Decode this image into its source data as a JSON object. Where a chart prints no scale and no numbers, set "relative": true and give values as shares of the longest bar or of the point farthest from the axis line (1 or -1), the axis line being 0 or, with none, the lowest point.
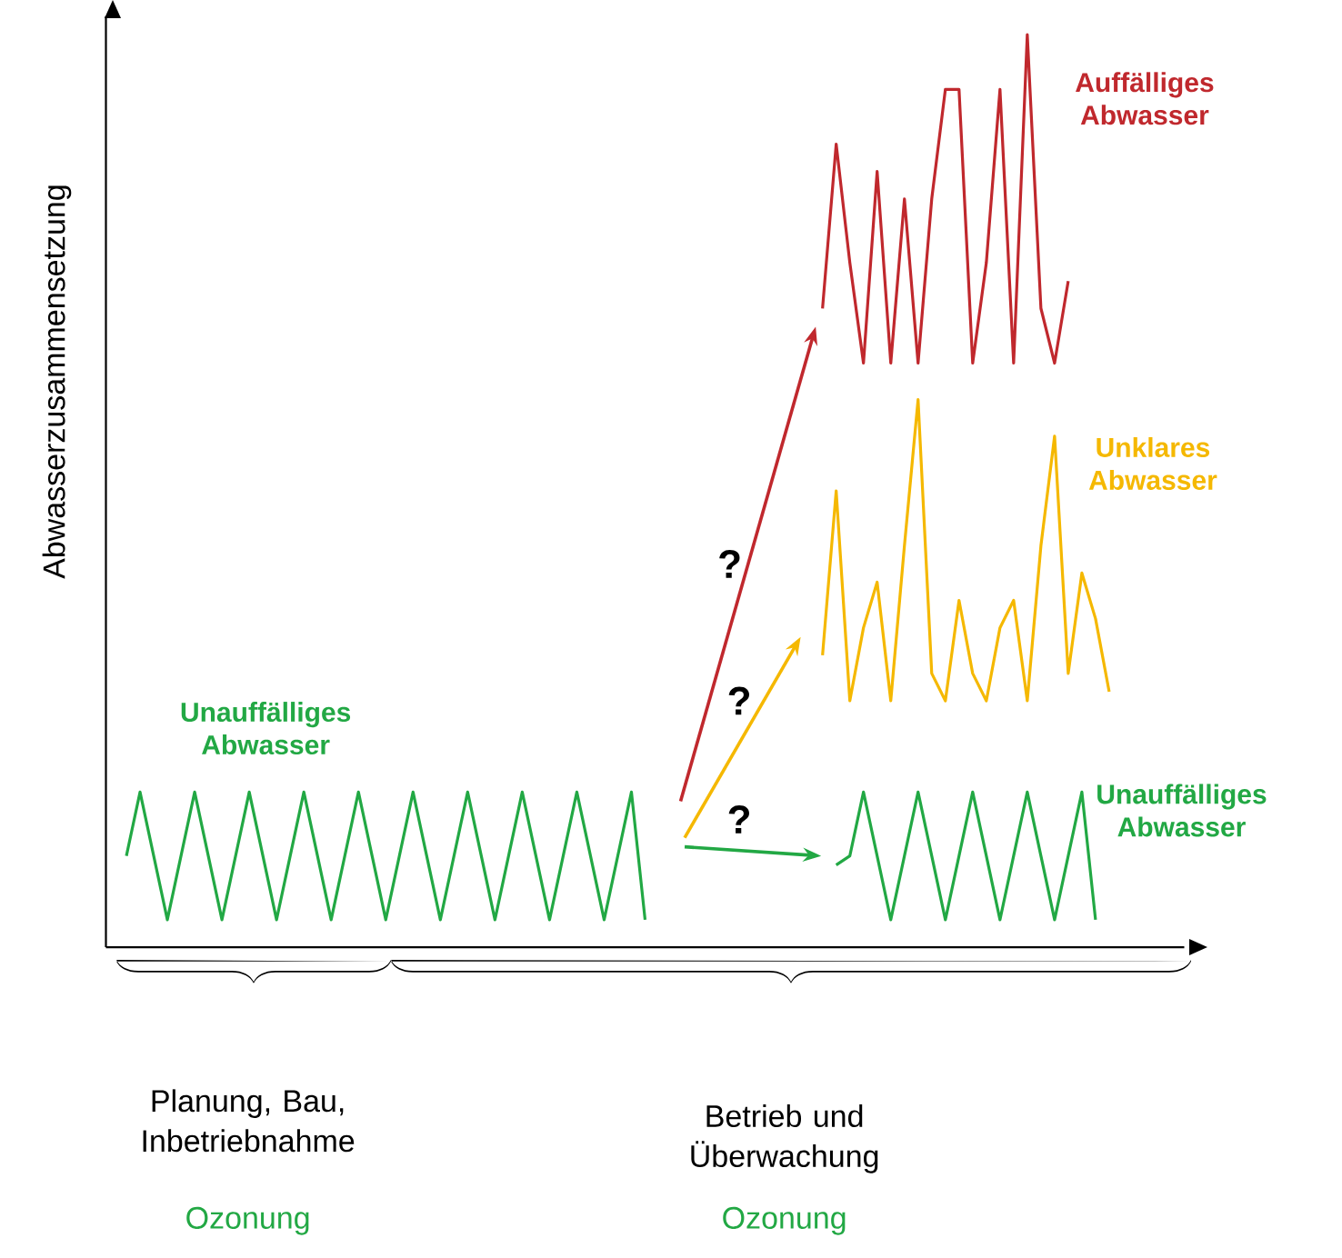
{
  "chart_data": {
    "type": "line",
    "relative": true,
    "ylabel": "Abwasserzusammensetzung",
    "categories": [
      null,
      null,
      null,
      null,
      null,
      null,
      null,
      null,
      null,
      null,
      null,
      null,
      null,
      null,
      null,
      null,
      null,
      null,
      null,
      null,
      null,
      null,
      null,
      null,
      null,
      null,
      null,
      null,
      null,
      null,
      null,
      null,
      null,
      null,
      null,
      null,
      null,
      null,
      null,
      null,
      null,
      null,
      null,
      null,
      null,
      null,
      null,
      null,
      null,
      null,
      null,
      null,
      null,
      null,
      null,
      null,
      null,
      null,
      null,
      null,
      null,
      null,
      null,
      null,
      null,
      null,
      null,
      null,
      null,
      null,
      null,
      null,
      null,
      null,
      null,
      null,
      null,
      null,
      null
    ],
    "series": [
      {
        "name": "Unauffälliges Abwasser",
        "color": "#22a844",
        "values": [
          null,
          0.1,
          0.17,
          0.1,
          0.03,
          0.1,
          0.17,
          0.1,
          0.03,
          0.1,
          0.17,
          0.1,
          0.03,
          0.1,
          0.17,
          0.1,
          0.03,
          0.1,
          0.17,
          0.1,
          0.03,
          0.1,
          0.17,
          0.1,
          0.03,
          0.1,
          0.17,
          0.1,
          0.03,
          0.1,
          0.17,
          0.1,
          0.03,
          0.1,
          0.17,
          0.1,
          0.03,
          0.1,
          0.17,
          0.03,
          null,
          null,
          null,
          null,
          null,
          null,
          null,
          null,
          null,
          null,
          null,
          null,
          null,
          null,
          null,
          null,
          null,
          null,
          null,
          null,
          null,
          null,
          null,
          null,
          null,
          null,
          null,
          null,
          null,
          null,
          null,
          null,
          null,
          null,
          null,
          null,
          null,
          null,
          null
        ]
      },
      {
        "name": "Auffälliges Abwasser",
        "color": "#c0282d",
        "values": [
          null,
          null,
          null,
          null,
          null,
          null,
          null,
          null,
          null,
          null,
          null,
          null,
          null,
          null,
          null,
          null,
          null,
          null,
          null,
          null,
          null,
          null,
          null,
          null,
          null,
          null,
          null,
          null,
          null,
          null,
          null,
          null,
          null,
          null,
          null,
          null,
          null,
          null,
          null,
          null,
          null,
          null,
          null,
          null,
          null,
          null,
          null,
          null,
          null,
          null,
          null,
          null,
          0.7,
          0.88,
          0.75,
          0.64,
          0.85,
          0.64,
          0.82,
          0.64,
          0.82,
          0.94,
          0.94,
          0.64,
          0.75,
          0.94,
          0.64,
          1.0,
          0.7,
          0.64,
          0.73,
          null,
          null,
          null,
          null,
          null,
          null,
          null,
          null
        ]
      },
      {
        "name": "Unklares Abwasser",
        "color": "#f5b800",
        "values": [
          null,
          null,
          null,
          null,
          null,
          null,
          null,
          null,
          null,
          null,
          null,
          null,
          null,
          null,
          null,
          null,
          null,
          null,
          null,
          null,
          null,
          null,
          null,
          null,
          null,
          null,
          null,
          null,
          null,
          null,
          null,
          null,
          null,
          null,
          null,
          null,
          null,
          null,
          null,
          null,
          null,
          null,
          null,
          null,
          null,
          null,
          null,
          null,
          null,
          null,
          null,
          null,
          0.32,
          0.5,
          0.27,
          0.35,
          0.4,
          0.27,
          0.44,
          0.6,
          0.3,
          0.27,
          0.38,
          0.3,
          0.27,
          0.35,
          0.38,
          0.27,
          0.44,
          0.56,
          0.3,
          0.41,
          0.36,
          0.28,
          null,
          null,
          null,
          null,
          null
        ]
      },
      {
        "name": "Unauffälliges Abwasser",
        "color": "#22a844",
        "values": [
          null,
          null,
          null,
          null,
          null,
          null,
          null,
          null,
          null,
          null,
          null,
          null,
          null,
          null,
          null,
          null,
          null,
          null,
          null,
          null,
          null,
          null,
          null,
          null,
          null,
          null,
          null,
          null,
          null,
          null,
          null,
          null,
          null,
          null,
          null,
          null,
          null,
          null,
          null,
          null,
          null,
          null,
          null,
          null,
          null,
          null,
          null,
          null,
          null,
          null,
          null,
          null,
          null,
          0.09,
          0.1,
          0.17,
          0.1,
          0.03,
          0.1,
          0.17,
          0.1,
          0.03,
          0.1,
          0.17,
          0.1,
          0.03,
          0.1,
          0.17,
          0.1,
          0.03,
          0.1,
          0.17,
          0.03,
          null,
          null,
          null,
          null,
          null,
          null
        ]
      }
    ],
    "annotations": [
      "?",
      "?",
      "?",
      "Planung, Bau, Inbetriebnahme",
      "Ozonung",
      "Betrieb und Überwachung",
      "Ozonung"
    ]
  }
}
